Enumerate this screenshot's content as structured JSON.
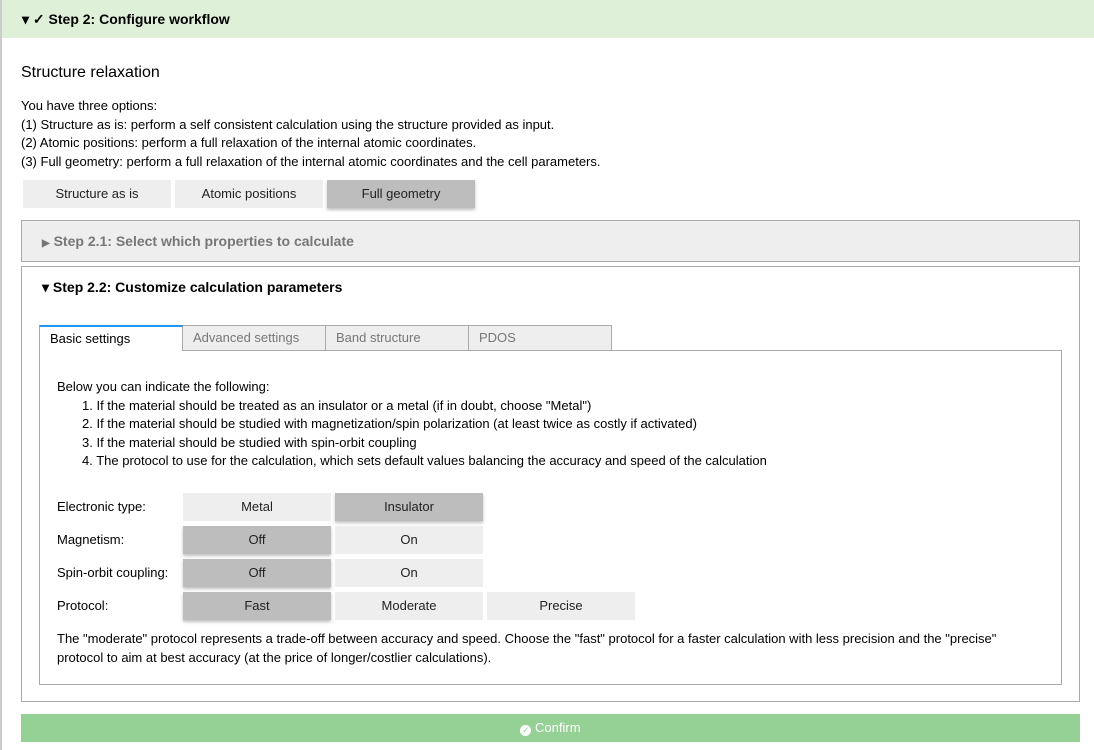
{
  "header": {
    "arrow": "▾",
    "check": "✓",
    "title": "Step 2: Configure workflow"
  },
  "relax": {
    "title": "Structure relaxation",
    "lines": [
      "You have three options:",
      "(1) Structure as is: perform a self consistent calculation using the structure provided as input.",
      "(2) Atomic positions: perform a full relaxation of the internal atomic coordinates.",
      "(3) Full geometry: perform a full relaxation of the internal atomic coordinates and the cell parameters."
    ],
    "options": [
      "Structure as is",
      "Atomic positions",
      "Full geometry"
    ],
    "selected": "Full geometry"
  },
  "step21": {
    "title": "Step 2.1: Select which properties to calculate",
    "expanded": false
  },
  "step22": {
    "title": "Step 2.2: Customize calculation parameters",
    "expanded": true,
    "tabs": [
      "Basic settings",
      "Advanced settings",
      "Band structure",
      "PDOS"
    ],
    "active_tab": "Basic settings",
    "intro": "Below you can indicate the following:",
    "list": [
      "1. If the material should be treated as an insulator or a metal (if in doubt, choose \"Metal\")",
      "2. If the material should be studied with magnetization/spin polarization (at least twice as costly if activated)",
      "3. If the material should be studied with spin-orbit coupling",
      "4. The protocol to use for the calculation, which sets default values balancing the accuracy and speed of the calculation"
    ],
    "rows": [
      {
        "label": "Electronic type:",
        "options": [
          "Metal",
          "Insulator"
        ],
        "selected": "Insulator"
      },
      {
        "label": "Magnetism:",
        "options": [
          "Off",
          "On"
        ],
        "selected": "Off"
      },
      {
        "label": "Spin-orbit coupling:",
        "options": [
          "Off",
          "On"
        ],
        "selected": "Off"
      },
      {
        "label": "Protocol:",
        "options": [
          "Fast",
          "Moderate",
          "Precise"
        ],
        "selected": "Fast"
      }
    ],
    "note": "The \"moderate\" protocol represents a trade-off between accuracy and speed. Choose the \"fast\" protocol for a faster calculation with less precision and the \"precise\" protocol to aim at best accuracy (at the price of longer/costlier calculations)."
  },
  "confirm": {
    "label": "Confirm",
    "icon": "check-circle-icon"
  },
  "colors": {
    "header_bg": "#dff0d8",
    "confirm_bg": "#95d095",
    "selected_bg": "#bdbdbd",
    "tab_accent": "#2196f3"
  }
}
